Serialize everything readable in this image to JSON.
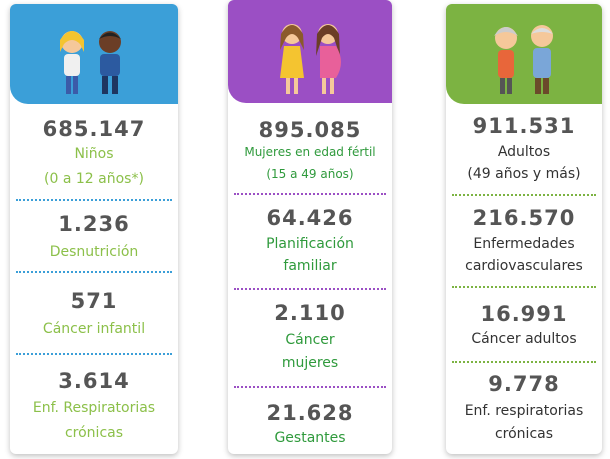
{
  "cards": [
    {
      "sections": [
        {
          "number": "685.147",
          "label": [
            "Niños",
            "(0 a 12 años*)"
          ]
        },
        {
          "number": "1.236",
          "label": [
            "Desnutrición"
          ]
        },
        {
          "number": "571",
          "label": [
            "Cáncer infantil"
          ]
        },
        {
          "number": "3.614",
          "label": [
            "Enf. Respiratorias",
            "crónicas"
          ]
        }
      ]
    },
    {
      "sections": [
        {
          "number": "895.085",
          "label": [
            "Mujeres en edad fértil",
            "(15 a 49 años)"
          ]
        },
        {
          "number": "64.426",
          "label": [
            "Planificación",
            "familiar"
          ]
        },
        {
          "number": "2.110",
          "label": [
            "Cáncer",
            "mujeres"
          ]
        },
        {
          "number": "21.628",
          "label": [
            "Gestantes"
          ]
        }
      ]
    },
    {
      "sections": [
        {
          "number": "911.531",
          "label": [
            "Adultos",
            "(49 años y más)"
          ]
        },
        {
          "number": "216.570",
          "label": [
            "Enfermedades",
            "cardiovasculares"
          ]
        },
        {
          "number": "16.991",
          "label": [
            "Cáncer adultos"
          ]
        },
        {
          "number": "9.778",
          "label": [
            "Enf. respiratorias",
            "crónicas"
          ]
        }
      ]
    }
  ]
}
